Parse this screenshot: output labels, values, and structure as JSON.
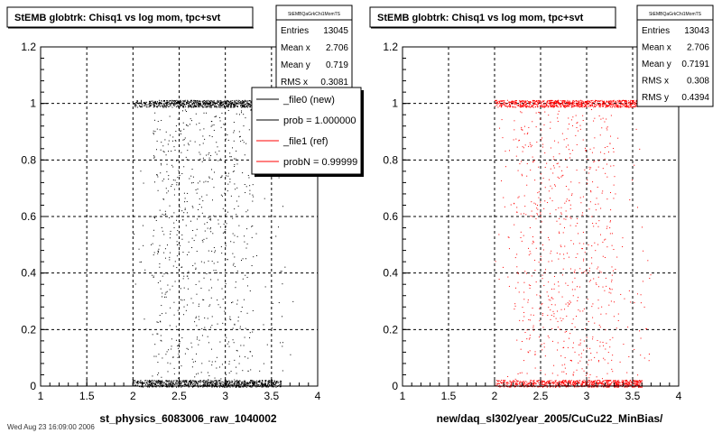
{
  "footer_text": "Wed Aug 23 16:09:00 2006",
  "legend": {
    "entries": [
      {
        "label": "_file0 (new)",
        "color": "#000000"
      },
      {
        "label": "prob = 1.000000",
        "color": "#000000"
      },
      {
        "label": "_file1 (ref)",
        "color": "#ff0000"
      },
      {
        "label": "probN = 0.99999",
        "color": "#ff0000"
      }
    ]
  },
  "chart_data": [
    {
      "type": "scatter",
      "title": "StEMB globtrk: Chisq1 vs log mom, tpc+svt",
      "xlabel": "st_physics_6083006_raw_1040002",
      "ylabel": "",
      "xlim": [
        1,
        4
      ],
      "ylim": [
        0,
        1.2
      ],
      "x_ticks": [
        "1",
        "1.5",
        "2",
        "2.5",
        "3",
        "3.5",
        "4"
      ],
      "y_ticks": [
        "0",
        "0.2",
        "0.4",
        "0.6",
        "0.8",
        "1",
        "1.2"
      ],
      "grid": true,
      "color": "#000000",
      "stats": {
        "name": "StEMBQaGrkChi1MomTS",
        "rows": [
          {
            "label": "Entries",
            "value": "13045"
          },
          {
            "label": "Mean x",
            "value": "2.706"
          },
          {
            "label": "Mean y",
            "value": "0.719"
          },
          {
            "label": "RMS x",
            "value": "0.3081"
          }
        ]
      },
      "bands": [
        {
          "y": 1.0,
          "x_range": [
            2.0,
            3.55
          ],
          "density": "high"
        },
        {
          "y": 0.01,
          "x_range": [
            2.0,
            3.6
          ],
          "density": "high"
        }
      ],
      "scatter_region": {
        "x_range": [
          2.0,
          3.7
        ],
        "y_range": [
          0.02,
          0.98
        ],
        "concentration": [
          2.2,
          3.3
        ]
      }
    },
    {
      "type": "scatter",
      "title": "StEMB globtrk: Chisq1 vs log mom, tpc+svt",
      "xlabel": "new/daq_sl302/year_2005/CuCu22_MinBias/",
      "ylabel": "",
      "xlim": [
        1,
        4
      ],
      "ylim": [
        0,
        1.2
      ],
      "x_ticks": [
        "1",
        "1.5",
        "2",
        "2.5",
        "3",
        "3.5",
        "4"
      ],
      "y_ticks": [
        "0",
        "0.2",
        "0.4",
        "0.6",
        "0.8",
        "1",
        "1.2"
      ],
      "grid": true,
      "color": "#ff0000",
      "stats": {
        "name": "StEMBQaGrkChi1MomTS",
        "rows": [
          {
            "label": "Entries",
            "value": "13043"
          },
          {
            "label": "Mean x",
            "value": "2.706"
          },
          {
            "label": "Mean y",
            "value": "0.7191"
          },
          {
            "label": "RMS x",
            "value": "0.308"
          },
          {
            "label": "RMS y",
            "value": "0.4394"
          }
        ]
      },
      "bands": [
        {
          "y": 1.0,
          "x_range": [
            2.0,
            3.55
          ],
          "density": "high"
        },
        {
          "y": 0.01,
          "x_range": [
            2.0,
            3.6
          ],
          "density": "high"
        }
      ],
      "scatter_region": {
        "x_range": [
          2.0,
          3.7
        ],
        "y_range": [
          0.02,
          0.98
        ],
        "concentration": [
          2.2,
          3.3
        ]
      }
    }
  ]
}
